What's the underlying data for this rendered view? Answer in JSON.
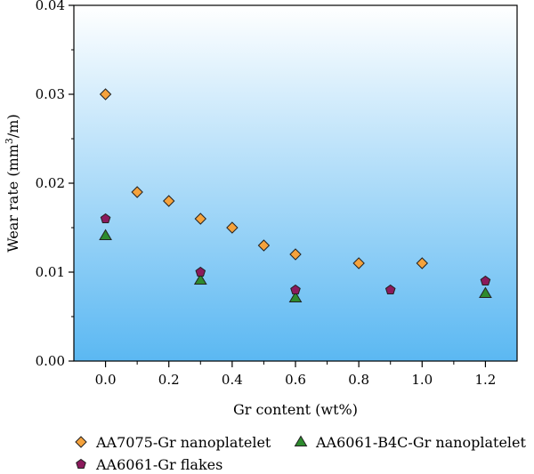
{
  "chart_data": {
    "type": "scatter",
    "title": "",
    "xlabel": "Gr content (wt%)",
    "ylabel_prefix": "Wear rate (mm",
    "ylabel_sup": "3",
    "ylabel_suffix": "/m)",
    "xlim": [
      -0.1,
      1.3
    ],
    "ylim": [
      0,
      0.04
    ],
    "xticks": [
      0.0,
      0.2,
      0.4,
      0.6,
      0.8,
      1.0,
      1.2
    ],
    "xtick_labels": [
      "0.0",
      "0.2",
      "0.4",
      "0.6",
      "0.8",
      "1.0",
      "1.2"
    ],
    "xminor": [
      0.1,
      0.3,
      0.5,
      0.7,
      0.9,
      1.1
    ],
    "yticks": [
      0.0,
      0.01,
      0.02,
      0.03,
      0.04
    ],
    "ytick_labels": [
      "0.00",
      "0.01",
      "0.02",
      "0.03",
      "0.04"
    ],
    "background_gradient": [
      "#ffffff",
      "#5bb8f2"
    ],
    "grid": false,
    "legend_position": "bottom",
    "series": [
      {
        "name": "AA7075-Gr nanoplatelet",
        "marker": "diamond",
        "color": "#f5a23c",
        "x": [
          0.0,
          0.1,
          0.2,
          0.3,
          0.4,
          0.5,
          0.6,
          0.8,
          1.0
        ],
        "y": [
          0.03,
          0.019,
          0.018,
          0.016,
          0.015,
          0.013,
          0.012,
          0.011,
          0.011
        ]
      },
      {
        "name": "AA6061-B4C-Gr nanoplatelet",
        "marker": "triangle",
        "color": "#2e8b2e",
        "x": [
          0.0,
          0.3,
          0.6,
          1.2
        ],
        "y": [
          0.0141,
          0.0091,
          0.0071,
          0.0076
        ]
      },
      {
        "name": "AA6061-Gr flakes",
        "marker": "pentagon",
        "color": "#8b1a5c",
        "x": [
          0.0,
          0.3,
          0.6,
          0.9,
          1.2
        ],
        "y": [
          0.016,
          0.01,
          0.008,
          0.008,
          0.009
        ]
      }
    ]
  }
}
